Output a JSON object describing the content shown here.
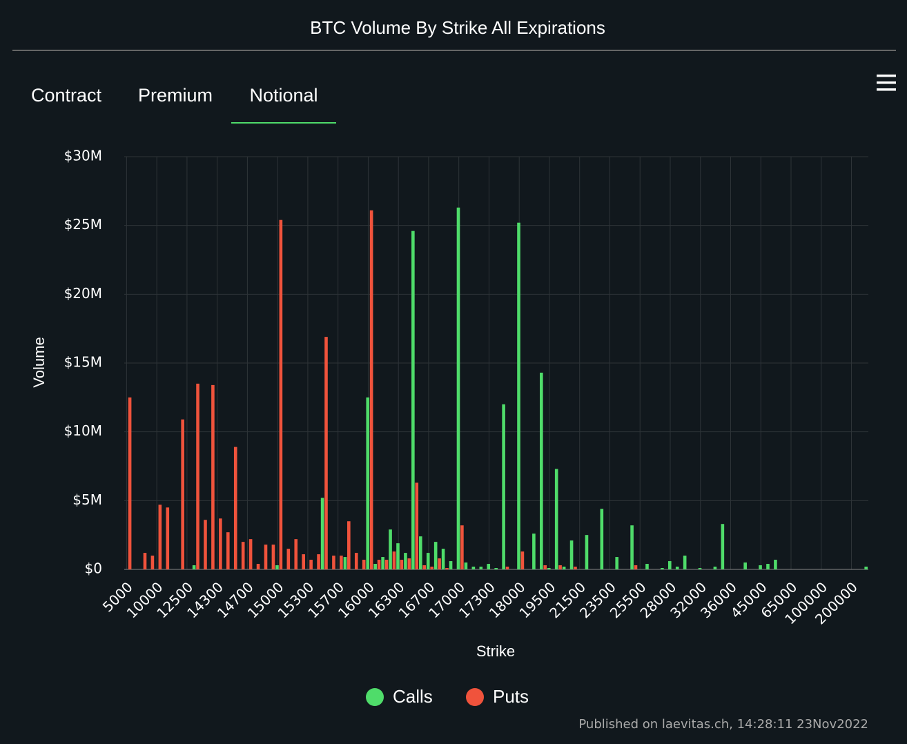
{
  "tabs": [
    "Contract",
    "Premium",
    "Notional"
  ],
  "credit": "Published on laevitas.ch, 14:28:11 23Nov2022",
  "chart_data": {
    "type": "bar",
    "title": "BTC Volume By Strike All Expirations",
    "x_label": "Strike",
    "y_label": "Volume",
    "categories": [
      "5000",
      null,
      null,
      null,
      "10000",
      null,
      null,
      null,
      "12500",
      null,
      null,
      null,
      "14300",
      null,
      null,
      null,
      "14700",
      null,
      null,
      null,
      "15000",
      null,
      null,
      null,
      "15300",
      null,
      null,
      null,
      "15700",
      null,
      null,
      null,
      "16000",
      null,
      null,
      null,
      "16300",
      null,
      null,
      null,
      "16700",
      null,
      null,
      null,
      "17000",
      null,
      null,
      null,
      "17300",
      null,
      null,
      null,
      "18000",
      null,
      null,
      null,
      "19500",
      null,
      null,
      null,
      "21500",
      null,
      null,
      null,
      "23500",
      null,
      null,
      null,
      "25500",
      null,
      null,
      null,
      "28000",
      null,
      null,
      null,
      "32000",
      null,
      null,
      null,
      "36000",
      null,
      null,
      null,
      "45000",
      null,
      null,
      null,
      "65000",
      null,
      null,
      null,
      "100000",
      null,
      null,
      null,
      "200000",
      null,
      null
    ],
    "series": [
      {
        "name": "Calls",
        "color": "#4fdc6a",
        "values": [
          0,
          0,
          0,
          0,
          0,
          0,
          0,
          0,
          0,
          0.3,
          0,
          0,
          0,
          0,
          0,
          0,
          0,
          0,
          0,
          0,
          0.3,
          0,
          0,
          0,
          0,
          0,
          5.2,
          0,
          0,
          0.9,
          0,
          0,
          12.5,
          0.4,
          0.9,
          2.9,
          1.9,
          1.2,
          24.6,
          2.4,
          1.2,
          2.0,
          1.5,
          0.6,
          26.3,
          0.5,
          0.2,
          0.2,
          0.4,
          0.1,
          12.0,
          0,
          25.2,
          0,
          2.6,
          14.3,
          0.1,
          7.3,
          0.2,
          2.1,
          0,
          2.5,
          0,
          4.4,
          0,
          0.9,
          0,
          3.2,
          0,
          0.4,
          0,
          0.1,
          0.6,
          0.2,
          1.0,
          0,
          0.1,
          0,
          0.2,
          3.3,
          0,
          0,
          0.5,
          0,
          0.3,
          0.4,
          0.7,
          0,
          0,
          0,
          0,
          0,
          0,
          0,
          0,
          0,
          0,
          0,
          0.2
        ]
      },
      {
        "name": "Puts",
        "color": "#f0533c",
        "values": [
          12.5,
          0,
          1.2,
          1.0,
          4.7,
          4.5,
          0,
          10.9,
          0,
          13.5,
          3.6,
          13.4,
          3.7,
          2.7,
          8.9,
          2.0,
          2.2,
          0.4,
          1.8,
          1.8,
          25.4,
          1.5,
          2.2,
          1.1,
          0.7,
          1.1,
          16.9,
          1.0,
          1.0,
          3.5,
          1.2,
          0.7,
          26.1,
          0.7,
          0.7,
          1.3,
          0.7,
          0.8,
          6.3,
          0.3,
          0.2,
          0.8,
          0.1,
          0,
          3.2,
          0,
          0,
          0,
          0,
          0,
          0.2,
          0,
          1.3,
          0,
          0,
          0.3,
          0,
          0.3,
          0,
          0.2,
          0,
          0,
          0,
          0,
          0,
          0,
          0,
          0.3,
          0,
          0,
          0,
          0,
          0,
          0,
          0,
          0,
          0,
          0,
          0,
          0,
          0,
          0,
          0,
          0,
          0,
          0,
          0,
          0,
          0,
          0,
          0,
          0,
          0,
          0,
          0,
          0,
          0,
          0,
          0
        ]
      }
    ],
    "ylim": [
      0,
      30
    ],
    "yticks": [
      {
        "value": 0,
        "label": "$0"
      },
      {
        "value": 5,
        "label": "$5M"
      },
      {
        "value": 10,
        "label": "$10M"
      },
      {
        "value": 15,
        "label": "$15M"
      },
      {
        "value": 20,
        "label": "$20M"
      },
      {
        "value": 25,
        "label": "$25M"
      },
      {
        "value": 30,
        "label": "$30M"
      }
    ],
    "grid": true,
    "legend": "bottom"
  }
}
